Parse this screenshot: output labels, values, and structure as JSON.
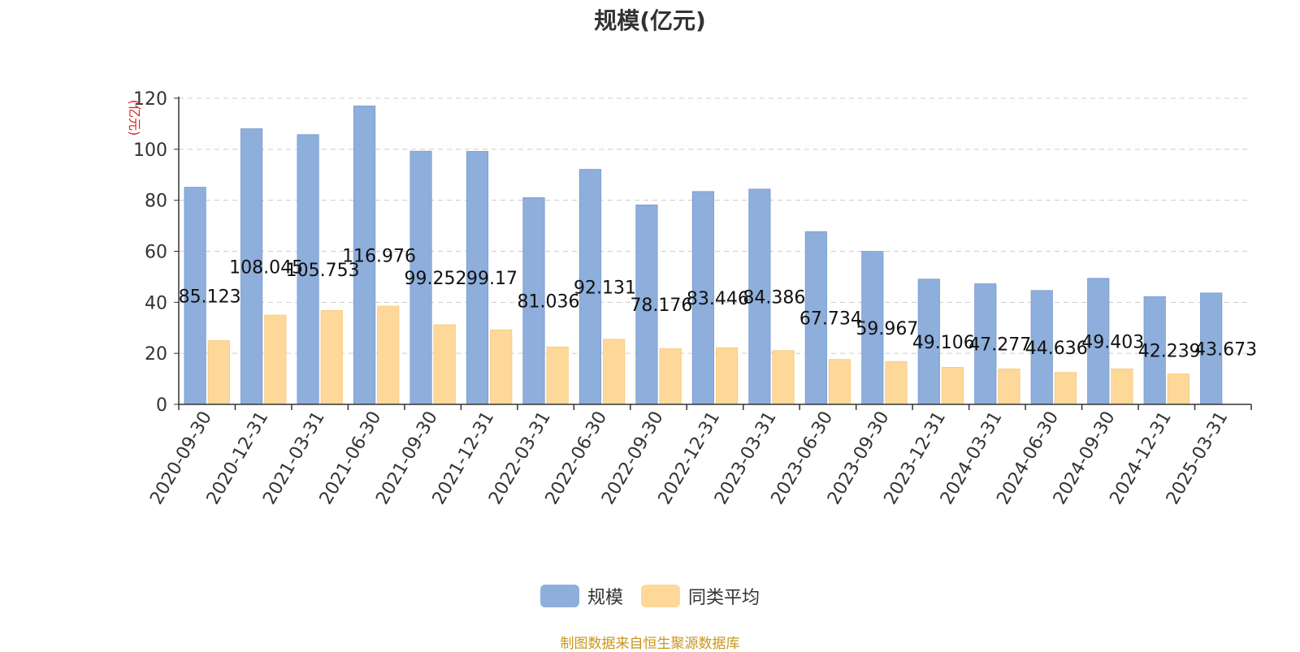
{
  "chart_data": {
    "type": "bar",
    "title": "规模(亿元)",
    "ylabel": "(亿元)",
    "xlabel": "",
    "ylim": [
      0,
      120
    ],
    "yticks": [
      0,
      20,
      40,
      60,
      80,
      100,
      120
    ],
    "grid": true,
    "legend_position": "bottom",
    "categories": [
      "2020-09-30",
      "2020-12-31",
      "2021-03-31",
      "2021-06-30",
      "2021-09-30",
      "2021-12-31",
      "2022-03-31",
      "2022-06-30",
      "2022-09-30",
      "2022-12-31",
      "2023-03-31",
      "2023-06-30",
      "2023-09-30",
      "2023-12-31",
      "2024-03-31",
      "2024-06-30",
      "2024-09-30",
      "2024-12-31",
      "2025-03-31"
    ],
    "series": [
      {
        "name": "规模",
        "color": "#8eaedb",
        "values": [
          85.123,
          108.045,
          105.753,
          116.976,
          99.252,
          99.17,
          81.036,
          92.131,
          78.176,
          83.446,
          84.386,
          67.734,
          59.967,
          49.106,
          47.277,
          44.636,
          49.403,
          42.239,
          43.673
        ],
        "labels": [
          "85.123",
          "108.045",
          "105.753",
          "116.976",
          "99.252",
          "99.17",
          "81.036",
          "92.131",
          "78.176",
          "83.446",
          "84.386",
          "67.734",
          "59.967",
          "49.106",
          "47.277",
          "44.636",
          "49.403",
          "42.239",
          "43.673"
        ]
      },
      {
        "name": "同类平均",
        "color": "#fdd899",
        "values": [
          25.0,
          35.0,
          36.8,
          38.5,
          31.2,
          29.2,
          22.5,
          25.5,
          21.8,
          22.2,
          21.1,
          17.6,
          16.8,
          14.5,
          13.9,
          12.5,
          13.9,
          11.9,
          null
        ]
      }
    ]
  },
  "source_note": "制图数据来自恒生聚源数据库",
  "colors": {
    "axis": "#333333",
    "grid": "#cccccc",
    "ylabel": "#e02020",
    "label_text": "#111111"
  }
}
